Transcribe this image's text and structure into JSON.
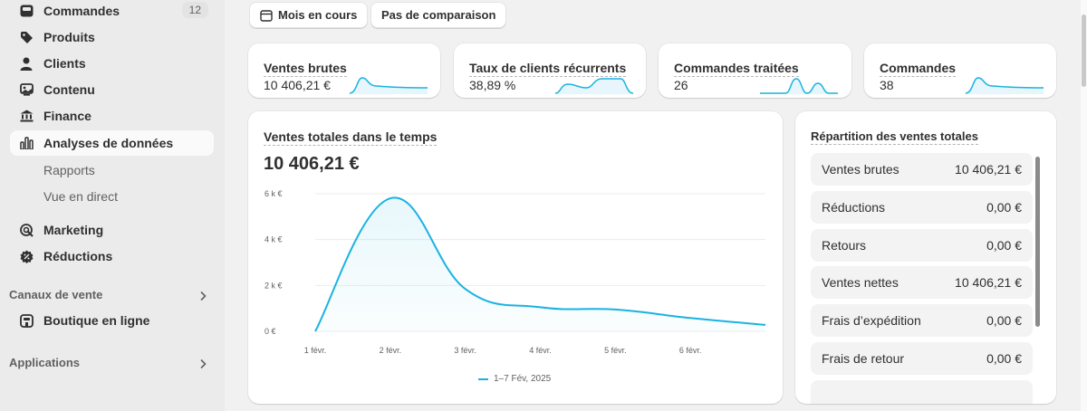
{
  "sidebar": {
    "items": [
      {
        "label": "Commandes",
        "icon": "orders-icon",
        "badge": "12"
      },
      {
        "label": "Produits",
        "icon": "tag-icon"
      },
      {
        "label": "Clients",
        "icon": "person-icon"
      },
      {
        "label": "Contenu",
        "icon": "content-icon"
      },
      {
        "label": "Finance",
        "icon": "bank-icon"
      },
      {
        "label": "Analyses de données",
        "icon": "bar-chart-icon",
        "active": true
      }
    ],
    "sub_items": [
      "Rapports",
      "Vue en direct"
    ],
    "items2": [
      {
        "label": "Marketing",
        "icon": "target-icon"
      },
      {
        "label": "Réductions",
        "icon": "discount-icon"
      }
    ],
    "sales_channels_title": "Canaux de vente",
    "online_store": {
      "label": "Boutique en ligne",
      "icon": "store-icon"
    },
    "apps_title": "Applications"
  },
  "toolbar": {
    "period_label": "Mois en cours",
    "comparison_label": "Pas de comparaison"
  },
  "metrics": [
    {
      "title": "Ventes brutes",
      "value": "10 406,21 €"
    },
    {
      "title": "Taux de clients récurrents",
      "value": "38,89 %"
    },
    {
      "title": "Commandes traitées",
      "value": "26"
    },
    {
      "title": "Commandes",
      "value": "38"
    }
  ],
  "main_chart": {
    "title": "Ventes totales dans le temps",
    "total": "10 406,21 €",
    "legend": "1–7 Fév, 2025"
  },
  "chart_data": {
    "type": "area",
    "title": "Ventes totales dans le temps",
    "x_tick_labels": [
      "1 févr.",
      "2 févr.",
      "3 févr.",
      "4 févr.",
      "5 févr.",
      "6 févr."
    ],
    "y_tick_labels": [
      "0 €",
      "2 k €",
      "4 k €",
      "6 k €"
    ],
    "ylim": [
      0,
      6000
    ],
    "grid": true,
    "series": [
      {
        "name": "1–7 Fév, 2025",
        "color": "#1ab3e0",
        "x": [
          1,
          2,
          3,
          4,
          5,
          6,
          7
        ],
        "values": [
          0,
          5800,
          1850,
          1050,
          950,
          580,
          280
        ]
      }
    ]
  },
  "breakdown": {
    "title": "Répartition des ventes totales",
    "rows": [
      {
        "label": "Ventes brutes",
        "value": "10 406,21 €"
      },
      {
        "label": "Réductions",
        "value": "0,00 €"
      },
      {
        "label": "Retours",
        "value": "0,00 €"
      },
      {
        "label": "Ventes nettes",
        "value": "10 406,21 €"
      },
      {
        "label": "Frais d’expédition",
        "value": "0,00 €"
      },
      {
        "label": "Frais de retour",
        "value": "0,00 €"
      }
    ]
  }
}
